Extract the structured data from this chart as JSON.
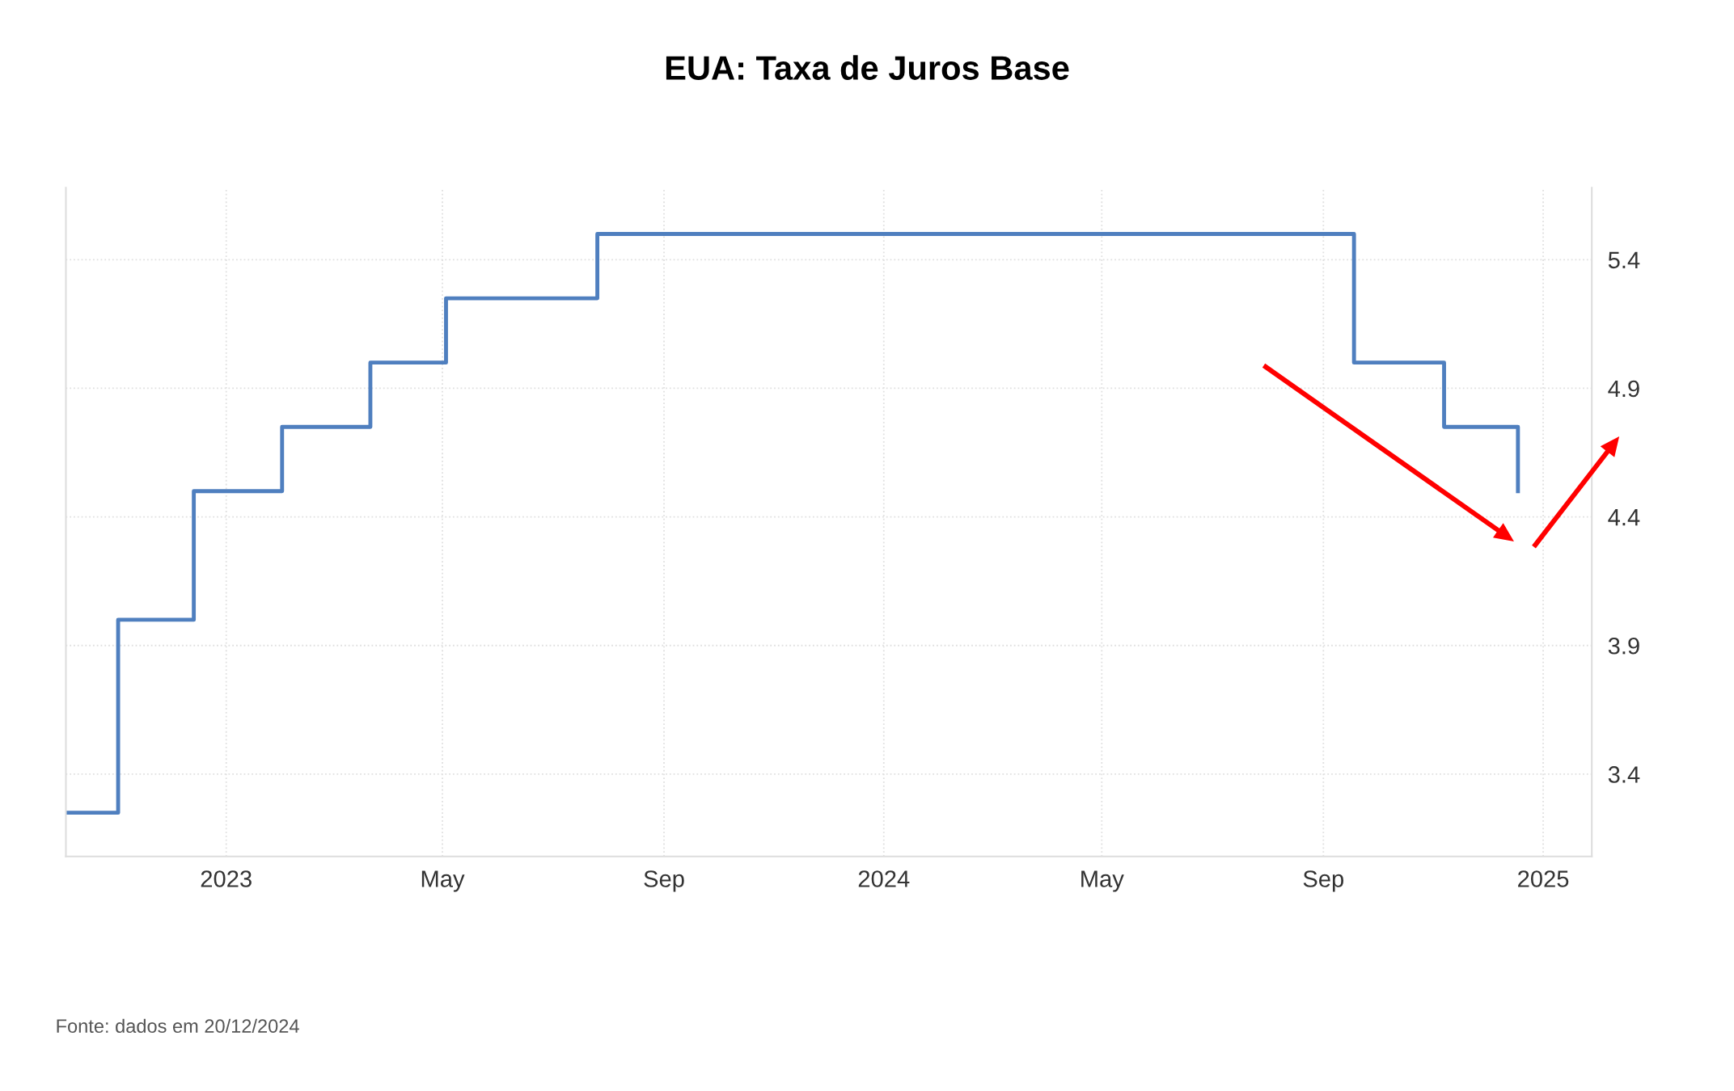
{
  "chart_data": {
    "type": "step",
    "title": "EUA: Taxa de Juros Base",
    "x": [
      "2022-10-04",
      "2022-11-02",
      "2022-12-14",
      "2023-02-01",
      "2023-03-22",
      "2023-05-03",
      "2023-07-26",
      "2024-09-18",
      "2024-11-07",
      "2024-12-18"
    ],
    "series": [
      {
        "color": "#4f7fbf",
        "values": [
          3.25,
          4.0,
          4.5,
          4.75,
          5.0,
          5.25,
          5.5,
          5.0,
          4.75,
          4.5
        ]
      }
    ],
    "xlim": [
      "2022-10-04",
      "2025-01-28"
    ],
    "xticks": [
      {
        "value": "2023-01-01",
        "label": "2023"
      },
      {
        "value": "2023-05-01",
        "label": "May"
      },
      {
        "value": "2023-09-01",
        "label": "Sep"
      },
      {
        "value": "2024-01-01",
        "label": "2024"
      },
      {
        "value": "2024-05-01",
        "label": "May"
      },
      {
        "value": "2024-09-01",
        "label": "Sep"
      },
      {
        "value": "2025-01-01",
        "label": "2025"
      }
    ],
    "ylim": [
      3.08,
      5.68
    ],
    "yticks": [
      3.4,
      3.9,
      4.4,
      4.9,
      5.4
    ],
    "grid": true,
    "line_style": "solid",
    "annotations": [
      "Fonte: dados em 20/12/2024"
    ]
  }
}
